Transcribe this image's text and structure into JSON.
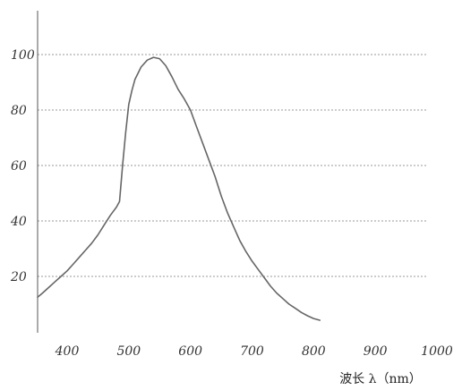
{
  "chart_data": {
    "type": "line",
    "title": "",
    "xlabel": "波长 λ（nm）",
    "ylabel": "",
    "xlim": [
      350,
      1010
    ],
    "ylim": [
      0,
      110
    ],
    "x_ticks": [
      400,
      500,
      600,
      700,
      800,
      900,
      1000
    ],
    "y_ticks": [
      20,
      40,
      60,
      80,
      100
    ],
    "grid": "horizontal dotted",
    "legend": "none",
    "line_color": "#666666",
    "grid_color": "#999999",
    "axis_color": "#555555",
    "series": [
      {
        "x": [
          350,
          360,
          370,
          380,
          390,
          400,
          410,
          420,
          430,
          440,
          450,
          460,
          470,
          480,
          485,
          490,
          495,
          500,
          505,
          510,
          520,
          530,
          540,
          550,
          560,
          570,
          580,
          590,
          600,
          610,
          620,
          630,
          640,
          650,
          660,
          670,
          680,
          690,
          700,
          710,
          720,
          730,
          740,
          750,
          760,
          770,
          780,
          790,
          800,
          810
        ],
        "y": [
          12.5,
          14,
          16,
          18,
          20,
          22,
          24.5,
          27,
          29.5,
          32,
          35,
          38.5,
          42,
          45,
          47,
          60,
          72,
          82,
          87,
          91,
          95.5,
          98,
          99,
          98.5,
          96,
          92,
          87.5,
          84,
          80,
          74,
          68,
          62,
          56,
          49,
          43,
          38,
          33,
          29,
          25.5,
          22.5,
          19.5,
          16.5,
          14,
          12,
          10,
          8.5,
          7,
          5.8,
          4.8,
          4.2
        ]
      }
    ]
  }
}
